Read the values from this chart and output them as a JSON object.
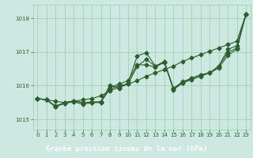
{
  "xlabel": "Graphe pression niveau de la mer (hPa)",
  "ylim": [
    1014.7,
    1018.4
  ],
  "xlim": [
    -0.5,
    23.5
  ],
  "yticks": [
    1015,
    1016,
    1017,
    1018
  ],
  "xticks": [
    0,
    1,
    2,
    3,
    4,
    5,
    6,
    7,
    8,
    9,
    10,
    11,
    12,
    13,
    14,
    15,
    16,
    17,
    18,
    19,
    20,
    21,
    22,
    23
  ],
  "bg_color": "#cce8e0",
  "label_bg": "#2d6e2d",
  "label_fg": "#ffffff",
  "grid_color": "#99ccaa",
  "line_color": "#2d5e2d",
  "line1": [
    1015.62,
    1015.58,
    1015.54,
    1015.5,
    1015.54,
    1015.58,
    1015.62,
    1015.7,
    1015.85,
    1015.95,
    1016.05,
    1016.15,
    1016.28,
    1016.38,
    1016.48,
    1016.58,
    1016.72,
    1016.82,
    1016.92,
    1017.02,
    1017.12,
    1017.22,
    1017.32,
    1018.12
  ],
  "line2": [
    1015.62,
    1015.58,
    1015.38,
    1015.48,
    1015.55,
    1015.5,
    1015.52,
    1015.52,
    1015.9,
    1016.0,
    1016.05,
    1016.58,
    1016.78,
    1016.58,
    1016.68,
    1015.92,
    1016.08,
    1016.18,
    1016.28,
    1016.38,
    1016.52,
    1016.9,
    1017.08,
    1018.12
  ],
  "line3": [
    1015.62,
    1015.58,
    1015.38,
    1015.48,
    1015.52,
    1015.45,
    1015.5,
    1015.5,
    1016.02,
    1015.92,
    1016.08,
    1016.88,
    1016.98,
    1016.58,
    1016.72,
    1015.92,
    1016.12,
    1016.22,
    1016.32,
    1016.38,
    1016.58,
    1016.98,
    1017.12,
    1018.12
  ],
  "line4": [
    1015.62,
    1015.58,
    1015.4,
    1015.5,
    1015.55,
    1015.5,
    1015.5,
    1015.52,
    1015.95,
    1016.05,
    1016.15,
    1016.62,
    1016.62,
    1016.55,
    1016.7,
    1015.88,
    1016.08,
    1016.22,
    1016.32,
    1016.38,
    1016.58,
    1017.08,
    1017.18,
    1018.12
  ]
}
